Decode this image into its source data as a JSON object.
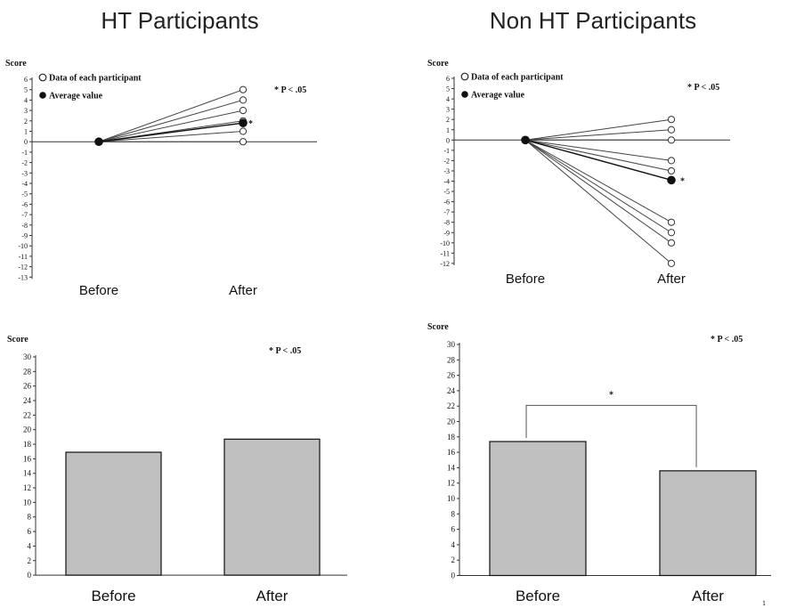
{
  "titles": {
    "ht": "HT Participants",
    "nonht": "Non HT Participants"
  },
  "colors": {
    "bar_fill": "#c0c0c0",
    "line": "#444444",
    "axis": "#333333"
  },
  "chart_data": [
    {
      "id": "ht_line",
      "type": "line",
      "ylabel": "Score",
      "ylim": [
        -13,
        6
      ],
      "yticks": [
        6,
        5,
        4,
        3,
        2,
        1,
        0,
        -1,
        -2,
        -3,
        -4,
        -5,
        -6,
        -7,
        -8,
        -9,
        -10,
        -11,
        -12,
        -13
      ],
      "categories": [
        "Before",
        "After"
      ],
      "annotation": "* P < .05",
      "legend": {
        "participants": "Data of each participant",
        "average": "Average value",
        "placement": "top-left"
      },
      "participants_after": [
        5,
        4,
        3,
        2,
        1,
        0
      ],
      "before_value": 0,
      "average_after": 1.8,
      "average_marker": "*"
    },
    {
      "id": "nonht_line",
      "type": "line",
      "ylabel": "Score",
      "ylim": [
        -12,
        6
      ],
      "yticks": [
        6,
        5,
        4,
        3,
        2,
        1,
        0,
        -1,
        -2,
        -3,
        -4,
        -5,
        -6,
        -7,
        -8,
        -9,
        -10,
        -11,
        -12
      ],
      "categories": [
        "Before",
        "After"
      ],
      "annotation": "* P < .05",
      "legend": {
        "participants": "Data of each participant",
        "average": "Average value",
        "placement": "top-left"
      },
      "participants_after": [
        2,
        1,
        0,
        -2,
        -3,
        -8,
        -9,
        -10,
        -12
      ],
      "before_value": 0,
      "average_after": -3.9,
      "average_marker": "*"
    },
    {
      "id": "ht_bar",
      "type": "bar",
      "ylabel": "Score",
      "ylim": [
        0,
        30
      ],
      "yticks": [
        30,
        28,
        26,
        24,
        22,
        20,
        18,
        16,
        14,
        12,
        10,
        8,
        6,
        4,
        2,
        0
      ],
      "categories": [
        "Before",
        "After"
      ],
      "values": [
        16.9,
        18.7
      ],
      "annotation": "* P < .05"
    },
    {
      "id": "nonht_bar",
      "type": "bar",
      "ylabel": "Score",
      "ylim": [
        0,
        30
      ],
      "yticks": [
        30,
        28,
        26,
        24,
        22,
        20,
        18,
        16,
        14,
        12,
        10,
        8,
        6,
        4,
        2,
        0
      ],
      "categories": [
        "Before",
        "After"
      ],
      "values": [
        17.4,
        13.6
      ],
      "annotation": "* P < .05",
      "bracket_marker": "*"
    }
  ],
  "footer_mark": "1"
}
